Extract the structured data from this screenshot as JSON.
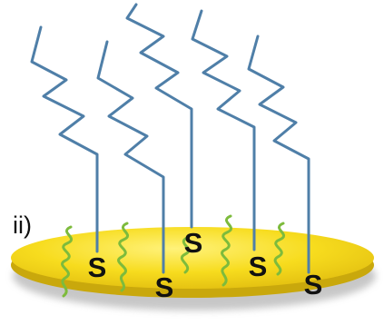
{
  "panel_label": "ii)",
  "sulfur_atoms": [
    {
      "label": "S"
    },
    {
      "label": "S"
    },
    {
      "label": "S"
    },
    {
      "label": "S"
    },
    {
      "label": "S"
    }
  ],
  "colors": {
    "substrate_fill": "#f7dc1e",
    "substrate_rim": "#c9a80c",
    "substrate_shadow": "#9e9e9e",
    "long_chain": "#4f7fa8",
    "short_chain": "#7dbb3c"
  }
}
